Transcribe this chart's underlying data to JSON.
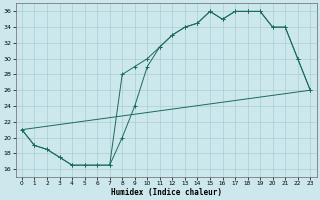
{
  "line1_x": [
    0,
    1,
    2,
    3,
    4,
    5,
    6,
    7,
    8,
    9,
    10,
    11,
    12,
    13,
    14,
    15,
    16,
    17,
    18,
    19,
    20,
    21,
    22,
    23
  ],
  "line1_y": [
    21,
    19,
    18.5,
    17.5,
    16.5,
    16.5,
    16.5,
    16.5,
    28,
    29,
    30,
    31.5,
    33,
    34,
    34.5,
    36,
    35,
    36,
    36,
    36,
    34,
    34,
    30,
    26
  ],
  "line2_x": [
    0,
    1,
    2,
    3,
    4,
    5,
    6,
    7,
    8,
    9,
    10,
    11,
    12,
    13,
    14,
    15,
    16,
    17,
    18,
    19,
    20,
    21,
    22,
    23
  ],
  "line2_y": [
    21,
    19,
    18.5,
    17.5,
    16.5,
    16.5,
    16.5,
    16.5,
    20,
    24,
    29,
    31.5,
    33,
    34,
    34.5,
    36,
    35,
    36,
    36,
    36,
    34,
    34,
    30,
    26
  ],
  "line3_x": [
    0,
    23
  ],
  "line3_y": [
    21,
    26
  ],
  "color": "#1a6b5a",
  "bg_color": "#cde8ec",
  "grid_color": "#aacdd4",
  "xlabel": "Humidex (Indice chaleur)",
  "xlim": [
    -0.5,
    23.5
  ],
  "ylim": [
    15,
    37
  ],
  "xticks": [
    0,
    1,
    2,
    3,
    4,
    5,
    6,
    7,
    8,
    9,
    10,
    11,
    12,
    13,
    14,
    15,
    16,
    17,
    18,
    19,
    20,
    21,
    22,
    23
  ],
  "yticks": [
    16,
    18,
    20,
    22,
    24,
    26,
    28,
    30,
    32,
    34,
    36
  ]
}
